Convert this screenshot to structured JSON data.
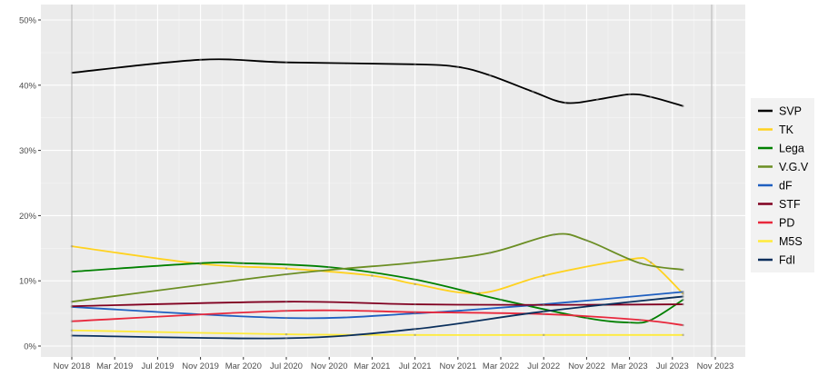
{
  "chart_data": {
    "type": "line",
    "title": "",
    "xlabel": "",
    "ylabel": "",
    "ylim": [
      0,
      50
    ],
    "y_ticks": [
      "0%",
      "10%",
      "20%",
      "30%",
      "40%",
      "50%"
    ],
    "y_tick_values": [
      0,
      10,
      20,
      30,
      40,
      50
    ],
    "x_ticks": [
      "Nov 2018",
      "Mar 2019",
      "Jul 2019",
      "Nov 2019",
      "Mar 2020",
      "Jul 2020",
      "Nov 2020",
      "Mar 2021",
      "Jul 2021",
      "Nov 2021",
      "Mar 2022",
      "Jul 2022",
      "Nov 2022",
      "Mar 2023",
      "Jul 2023",
      "Nov 2023"
    ],
    "x_tick_dates": [
      "2018-11",
      "2019-03",
      "2019-07",
      "2019-11",
      "2020-03",
      "2020-07",
      "2020-11",
      "2021-03",
      "2021-07",
      "2021-11",
      "2022-03",
      "2022-07",
      "2022-11",
      "2023-03",
      "2023-07",
      "2023-11"
    ],
    "vertical_markers": [
      "2018-11",
      "2023-11"
    ],
    "grid": true,
    "legend_position": "right",
    "series": [
      {
        "name": "SVP",
        "color": "#000000",
        "x": [
          "2018-11",
          "2019-11",
          "2020-07",
          "2021-07",
          "2021-11",
          "2022-02",
          "2022-06",
          "2022-09",
          "2022-12",
          "2023-03",
          "2023-05",
          "2023-08"
        ],
        "values": [
          41.9,
          43.9,
          43.5,
          43.2,
          42.8,
          41.5,
          39.0,
          37.3,
          37.8,
          38.6,
          38.2,
          36.8
        ]
      },
      {
        "name": "TK",
        "color": "#FFD21F",
        "x": [
          "2018-11",
          "2019-11",
          "2020-07",
          "2021-03",
          "2021-07",
          "2022-01",
          "2022-07",
          "2023-03",
          "2023-05",
          "2023-08"
        ],
        "values": [
          15.3,
          12.6,
          11.9,
          10.8,
          9.5,
          8.1,
          10.8,
          13.3,
          12.8,
          8.0
        ]
      },
      {
        "name": "Lega",
        "color": "#008000",
        "x": [
          "2018-11",
          "2019-11",
          "2020-03",
          "2020-11",
          "2021-07",
          "2022-03",
          "2022-11",
          "2023-03",
          "2023-05",
          "2023-08"
        ],
        "values": [
          11.4,
          12.7,
          12.7,
          12.1,
          10.2,
          7.1,
          4.3,
          3.6,
          4.0,
          7.1
        ]
      },
      {
        "name": "V.G.V",
        "color": "#6B8E23",
        "x": [
          "2018-11",
          "2020-07",
          "2021-07",
          "2022-02",
          "2022-08",
          "2022-11",
          "2023-04",
          "2023-08"
        ],
        "values": [
          6.8,
          11.0,
          12.8,
          14.3,
          17.1,
          16.2,
          12.7,
          11.7
        ]
      },
      {
        "name": "dF",
        "color": "#1F5FC0",
        "x": [
          "2018-11",
          "2020-07",
          "2021-07",
          "2022-07",
          "2023-08"
        ],
        "values": [
          6.0,
          4.3,
          5.0,
          6.4,
          8.3
        ]
      },
      {
        "name": "STF",
        "color": "#800020",
        "x": [
          "2018-11",
          "2020-07",
          "2021-07",
          "2022-07",
          "2023-08"
        ],
        "values": [
          6.1,
          6.8,
          6.4,
          6.3,
          6.4
        ]
      },
      {
        "name": "PD",
        "color": "#E8283C",
        "x": [
          "2018-11",
          "2020-07",
          "2021-07",
          "2022-07",
          "2023-04",
          "2023-08"
        ],
        "values": [
          3.8,
          5.4,
          5.2,
          4.9,
          4.0,
          3.2
        ]
      },
      {
        "name": "M5S",
        "color": "#FFEB3B",
        "x": [
          "2018-11",
          "2020-07",
          "2021-07",
          "2022-07",
          "2023-08"
        ],
        "values": [
          2.4,
          1.8,
          1.7,
          1.7,
          1.7
        ]
      },
      {
        "name": "FdI",
        "label": "FdI",
        "color": "#0A2F5C",
        "x": [
          "2018-11",
          "2020-07",
          "2021-07",
          "2022-07",
          "2023-08"
        ],
        "values": [
          1.6,
          1.2,
          2.6,
          5.3,
          7.6
        ]
      }
    ]
  },
  "legend": [
    "SVP",
    "TK",
    "Lega",
    "V.G.V",
    "dF",
    "STF",
    "PD",
    "M5S",
    "FdI"
  ]
}
